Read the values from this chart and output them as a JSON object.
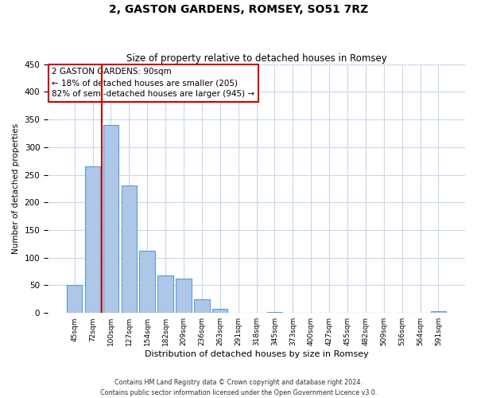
{
  "title": "2, GASTON GARDENS, ROMSEY, SO51 7RZ",
  "subtitle": "Size of property relative to detached houses in Romsey",
  "xlabel": "Distribution of detached houses by size in Romsey",
  "ylabel": "Number of detached properties",
  "bar_labels": [
    "45sqm",
    "72sqm",
    "100sqm",
    "127sqm",
    "154sqm",
    "182sqm",
    "209sqm",
    "236sqm",
    "263sqm",
    "291sqm",
    "318sqm",
    "345sqm",
    "373sqm",
    "400sqm",
    "427sqm",
    "455sqm",
    "482sqm",
    "509sqm",
    "536sqm",
    "564sqm",
    "591sqm"
  ],
  "bar_values": [
    50,
    265,
    340,
    230,
    113,
    68,
    62,
    25,
    7,
    0,
    0,
    2,
    0,
    0,
    0,
    0,
    0,
    0,
    0,
    0,
    3
  ],
  "bar_color": "#aec6e8",
  "bar_edge_color": "#5b9bd5",
  "vline_x": 1.5,
  "vline_color": "#cc0000",
  "annotation_title": "2 GASTON GARDENS: 90sqm",
  "annotation_line1": "← 18% of detached houses are smaller (205)",
  "annotation_line2": "82% of semi-detached houses are larger (945) →",
  "annotation_box_color": "#cc0000",
  "ylim": [
    0,
    450
  ],
  "yticks": [
    0,
    50,
    100,
    150,
    200,
    250,
    300,
    350,
    400,
    450
  ],
  "footer_line1": "Contains HM Land Registry data © Crown copyright and database right 2024.",
  "footer_line2": "Contains public sector information licensed under the Open Government Licence v3.0.",
  "background_color": "#ffffff",
  "grid_color": "#c8d8e8"
}
